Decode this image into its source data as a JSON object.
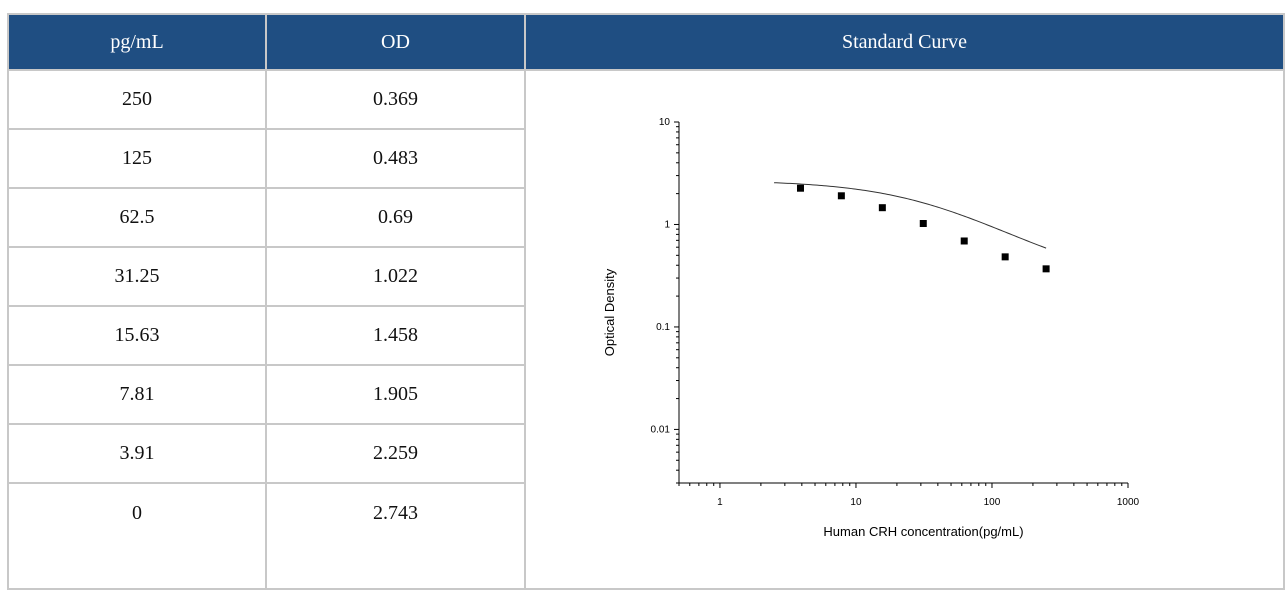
{
  "table": {
    "headers": [
      "pg/mL",
      "OD",
      "Standard Curve"
    ],
    "rows": [
      {
        "conc": "250",
        "od": "0.369"
      },
      {
        "conc": "125",
        "od": "0.483"
      },
      {
        "conc": "62.5",
        "od": "0.69"
      },
      {
        "conc": "31.25",
        "od": "1.022"
      },
      {
        "conc": "15.63",
        "od": "1.458"
      },
      {
        "conc": "7.81",
        "od": "1.905"
      },
      {
        "conc": "3.91",
        "od": "2.259"
      },
      {
        "conc": "0",
        "od": "2.743"
      }
    ]
  },
  "colors": {
    "header_bg": "#1f4e82",
    "header_text": "#ffffff",
    "grid": "#c8c8c8"
  },
  "chart_data": {
    "type": "scatter",
    "title": "",
    "xlabel": "Human CRH concentration(pg/mL)",
    "ylabel": "Optical Density",
    "x_scale": "log",
    "y_scale": "log",
    "xlim": [
      0.5,
      1000
    ],
    "ylim": [
      0.003,
      10
    ],
    "x_ticks": [
      "1",
      "10",
      "100",
      "1000"
    ],
    "y_ticks": [
      "0.01",
      "0.1",
      "1",
      "10"
    ],
    "points": [
      {
        "x": 3.91,
        "y": 2.259
      },
      {
        "x": 7.81,
        "y": 1.905
      },
      {
        "x": 15.63,
        "y": 1.458
      },
      {
        "x": 31.25,
        "y": 1.022
      },
      {
        "x": 62.5,
        "y": 0.69
      },
      {
        "x": 125,
        "y": 0.483
      },
      {
        "x": 250,
        "y": 0.369
      }
    ],
    "fit_curve": {
      "type": "4PL",
      "x_range": [
        2.5,
        250
      ],
      "a": 2.7,
      "b": 1.0,
      "c": 40,
      "d": 0.25
    },
    "grid": false,
    "legend": "none"
  }
}
